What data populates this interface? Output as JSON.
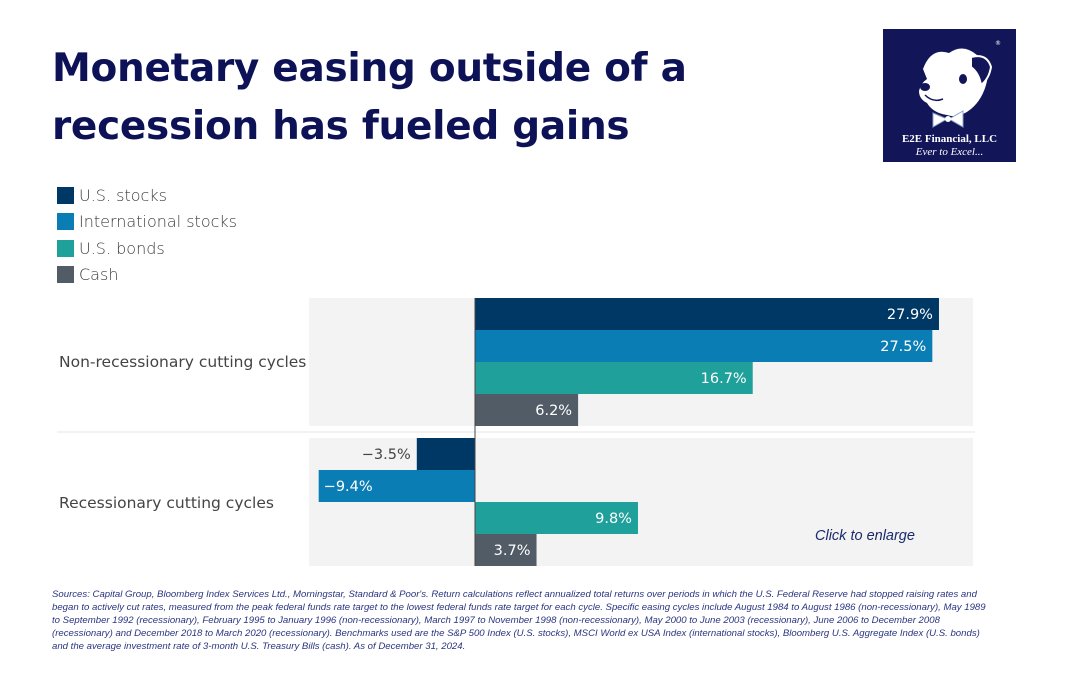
{
  "title": "Monetary easing outside of a recession has fueled gains",
  "logo": {
    "name": "dog-mascot-logo",
    "firm": "E2E Financial, LLC",
    "tagline": "Ever to Excel...",
    "background_color": "#121659"
  },
  "chart_data": {
    "type": "bar",
    "orientation": "horizontal",
    "title": "Monetary easing outside of a recession has fueled gains",
    "xlabel": "",
    "ylabel": "",
    "categories": [
      "Non-recessionary cutting cycles",
      "Recessionary cutting cycles"
    ],
    "series": [
      {
        "name": "U.S. stocks",
        "color": "#003865",
        "values": [
          27.9,
          -3.5
        ],
        "labels": [
          "27.9%",
          "−3.5%"
        ]
      },
      {
        "name": "International stocks",
        "color": "#0a7db5",
        "values": [
          27.5,
          -9.4
        ],
        "labels": [
          "27.5%",
          "−9.4%"
        ]
      },
      {
        "name": "U.S. bonds",
        "color": "#1fa09a",
        "values": [
          16.7,
          9.8
        ],
        "labels": [
          "16.7%",
          "9.8%"
        ]
      },
      {
        "name": "Cash",
        "color": "#515c66",
        "values": [
          6.2,
          3.7
        ],
        "labels": [
          "6.2%",
          "3.7%"
        ]
      }
    ],
    "units": "%",
    "xlim": [
      -10,
      30
    ],
    "grid": false,
    "legend_position": "top-left"
  },
  "legend": [
    {
      "label": "U.S. stocks",
      "color": "#003865"
    },
    {
      "label": "International stocks",
      "color": "#0a7db5"
    },
    {
      "label": "U.S. bonds",
      "color": "#1fa09a"
    },
    {
      "label": "Cash",
      "color": "#515c66"
    }
  ],
  "enlarge_link": "Click to enlarge",
  "footnote": "Sources: Capital Group, Bloomberg Index Services Ltd., Morningstar, Standard & Poor's. Return calculations reflect annualized total returns over periods in which the U.S. Federal Reserve had stopped raising rates and began to actively cut rates, measured from the peak federal funds rate target to the lowest federal funds rate target for each cycle. Specific easing cycles include August 1984 to August 1986 (non-recessionary), May 1989 to September 1992 (recessionary), February 1995 to January 1996 (non-recessionary), March 1997 to November 1998 (non-recessionary), May 2000 to June 2003 (recessionary), June 2006 to December 2008 (recessionary) and December 2018 to March 2020 (recessionary). Benchmarks used are the S&P 500 Index (U.S. stocks), MSCI World ex USA Index (international stocks), Bloomberg U.S. Aggregate Index (U.S. bonds) and the average investment rate of 3-month U.S. Treasury Bills (cash). As of December 31, 2024."
}
